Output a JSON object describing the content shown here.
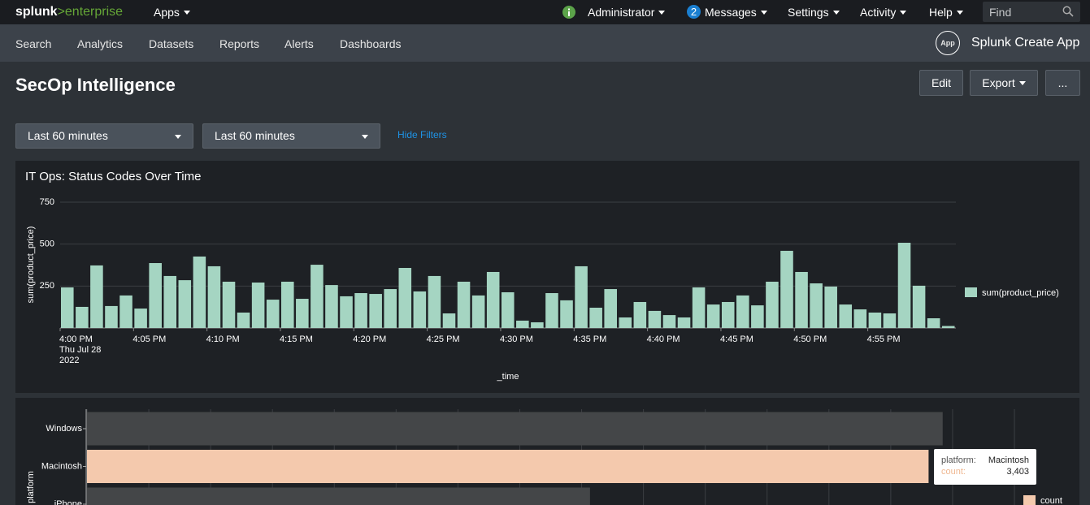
{
  "topbar": {
    "logo_brand": "splunk",
    "logo_product": ">enterprise",
    "apps": "Apps",
    "user": "Administrator",
    "messages_count": "2",
    "messages": "Messages",
    "settings": "Settings",
    "activity": "Activity",
    "help": "Help",
    "find_placeholder": "Find"
  },
  "nav": {
    "items": [
      "Search",
      "Analytics",
      "Datasets",
      "Reports",
      "Alerts",
      "Dashboards"
    ],
    "app_icon": "App",
    "app_name": "Splunk Create App"
  },
  "dashboard": {
    "title": "SecOp Intelligence",
    "buttons": [
      "Edit",
      "Export",
      "..."
    ],
    "filters": [
      "Last 60 minutes",
      "Last 60 minutes"
    ],
    "hide_filters": "Hide Filters"
  },
  "chart_data": [
    {
      "type": "bar",
      "title": "IT Ops: Status Codes Over Time",
      "y_label": "sum(product_price)",
      "x_label": "_time",
      "categories": [
        "4:00 PM\nThu Jul 28\n2022",
        null,
        null,
        null,
        null,
        "4:05 PM",
        null,
        null,
        null,
        null,
        "4:10 PM",
        null,
        null,
        null,
        null,
        "4:15 PM",
        null,
        null,
        null,
        null,
        "4:20 PM",
        null,
        null,
        null,
        null,
        "4:25 PM",
        null,
        null,
        null,
        null,
        "4:30 PM",
        null,
        null,
        null,
        null,
        "4:35 PM",
        null,
        null,
        null,
        null,
        "4:40 PM",
        null,
        null,
        null,
        null,
        "4:45 PM",
        null,
        null,
        null,
        null,
        "4:50 PM",
        null,
        null,
        null,
        null,
        "4:55 PM",
        null,
        null,
        null,
        null,
        null
      ],
      "series": [
        {
          "name": "sum(product_price)",
          "color": "#a5d5c2",
          "values": [
            242,
            126,
            373,
            131,
            194,
            116,
            387,
            310,
            285,
            426,
            368,
            276,
            92,
            271,
            169,
            276,
            174,
            377,
            256,
            189,
            208,
            203,
            232,
            358,
            218,
            310,
            87,
            276,
            194,
            334,
            213,
            44,
            34,
            208,
            165,
            368,
            121,
            232,
            63,
            155,
            102,
            77,
            63,
            242,
            140,
            155,
            194,
            135,
            276,
            460,
            334,
            266,
            247,
            140,
            111,
            92,
            87,
            508,
            252,
            58,
            12
          ]
        }
      ],
      "ylim": [
        0,
        750
      ],
      "yticks": [
        250,
        500,
        750
      ],
      "grid": true,
      "legend": "right"
    },
    {
      "type": "hbar",
      "y_label": "platform",
      "categories": [
        "Windows",
        "Macintosh",
        "iPhone"
      ],
      "series": [
        {
          "name": "count",
          "color": "#f4c9ad",
          "values": [
            3460,
            3403,
            2034
          ],
          "colors": [
            "#444648",
            "#f4c9ad",
            "#444648"
          ]
        }
      ],
      "xlim": [
        0,
        3750
      ],
      "xticks": [
        0,
        250,
        500,
        750,
        1000,
        1250,
        1500,
        1750,
        2000,
        2250,
        2500,
        2750,
        3000,
        3250,
        3500,
        3750
      ],
      "grid": true,
      "legend": "right",
      "tooltip": [
        {
          "label": "platform:",
          "text": "Macintosh"
        },
        {
          "label": "count:",
          "text": "3,403"
        }
      ]
    }
  ]
}
